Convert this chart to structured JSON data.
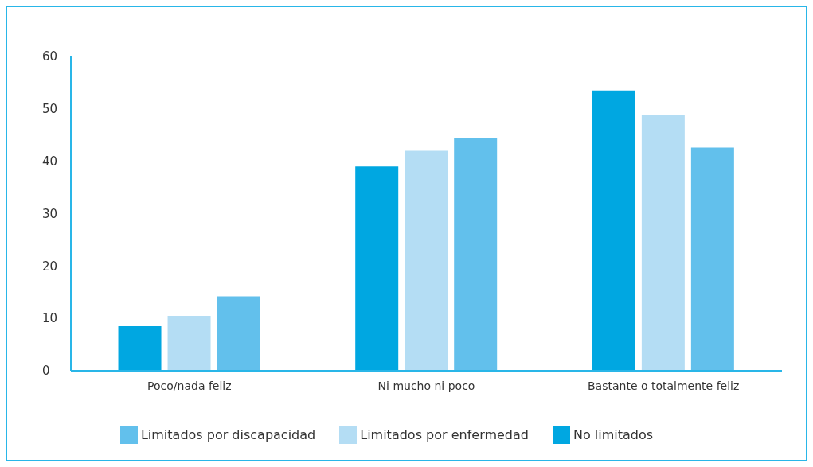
{
  "chart_data": {
    "type": "bar",
    "categories": [
      "Poco/nada feliz",
      "Ni mucho ni poco",
      "Bastante o totalmente feliz"
    ],
    "series": [
      {
        "name": "No limitados",
        "color": "#00a7e1",
        "values": [
          8.5,
          39,
          53.5
        ]
      },
      {
        "name": "Limitados por enfermedad",
        "color": "#b4ddf4",
        "values": [
          10.5,
          42,
          48.8
        ]
      },
      {
        "name": "Limitados por discapacidad",
        "color": "#62c0ec",
        "values": [
          14.2,
          44.5,
          42.6
        ]
      }
    ],
    "ylim": [
      0,
      60
    ],
    "yticks": [
      0,
      10,
      20,
      30,
      40,
      50,
      60
    ],
    "grid": false,
    "legend": "bottom"
  }
}
